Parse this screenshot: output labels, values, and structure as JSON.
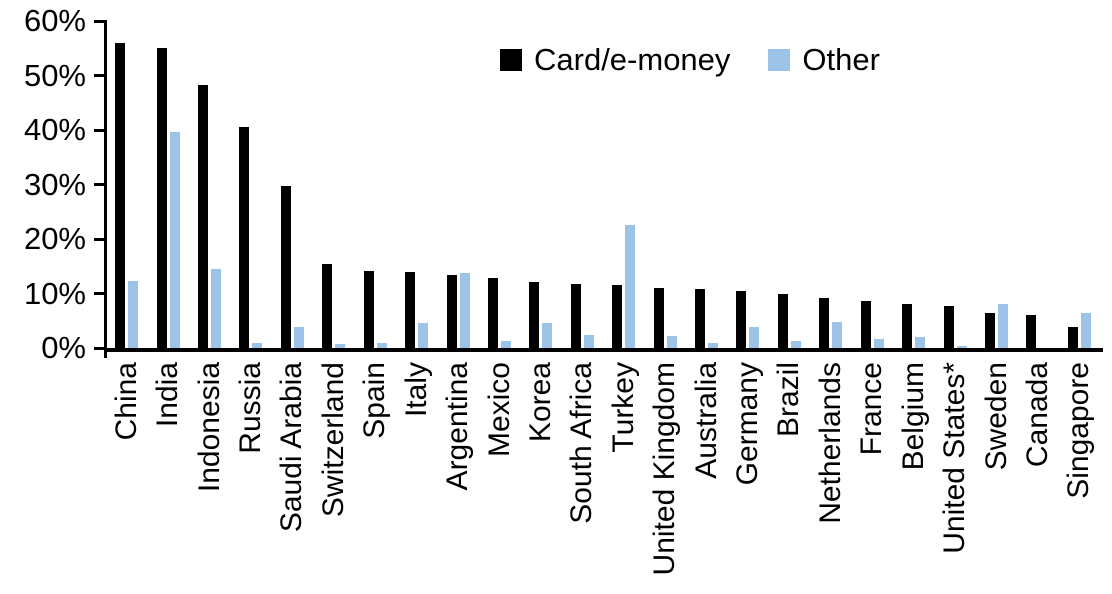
{
  "chart_data": {
    "type": "bar",
    "title": "",
    "xlabel": "",
    "ylabel": "",
    "ylim": [
      0,
      60
    ],
    "ytick_step": 10,
    "ytick_labels": [
      "0%",
      "10%",
      "20%",
      "30%",
      "40%",
      "50%",
      "60%"
    ],
    "grid": false,
    "legend_position": "top-center-inside",
    "categories": [
      "China",
      "India",
      "Indonesia",
      "Russia",
      "Saudi Arabia",
      "Switzerland",
      "Spain",
      "Italy",
      "Argentina",
      "Mexico",
      "Korea",
      "South Africa",
      "Turkey",
      "United Kingdom",
      "Australia",
      "Germany",
      "Brazil",
      "Netherlands",
      "France",
      "Belgium",
      "United States*",
      "Sweden",
      "Canada",
      "Singapore"
    ],
    "series": [
      {
        "name": "Card/e-money",
        "color": "#000000",
        "values": [
          56,
          55,
          48.2,
          40.5,
          29.8,
          15.5,
          14.1,
          14,
          13.4,
          12.9,
          12.2,
          11.7,
          11.5,
          11,
          10.8,
          10.5,
          10,
          9.2,
          8.6,
          8.1,
          7.8,
          6.5,
          6,
          3.8
        ]
      },
      {
        "name": "Other",
        "color": "#9DC3E6",
        "values": [
          12.3,
          39.7,
          14.5,
          1,
          3.8,
          0.8,
          1,
          4.5,
          13.8,
          1.3,
          4.5,
          2.3,
          22.5,
          2.2,
          1,
          3.9,
          1.2,
          4.8,
          1.6,
          2,
          0.3,
          8,
          0,
          6.5
        ]
      }
    ]
  }
}
